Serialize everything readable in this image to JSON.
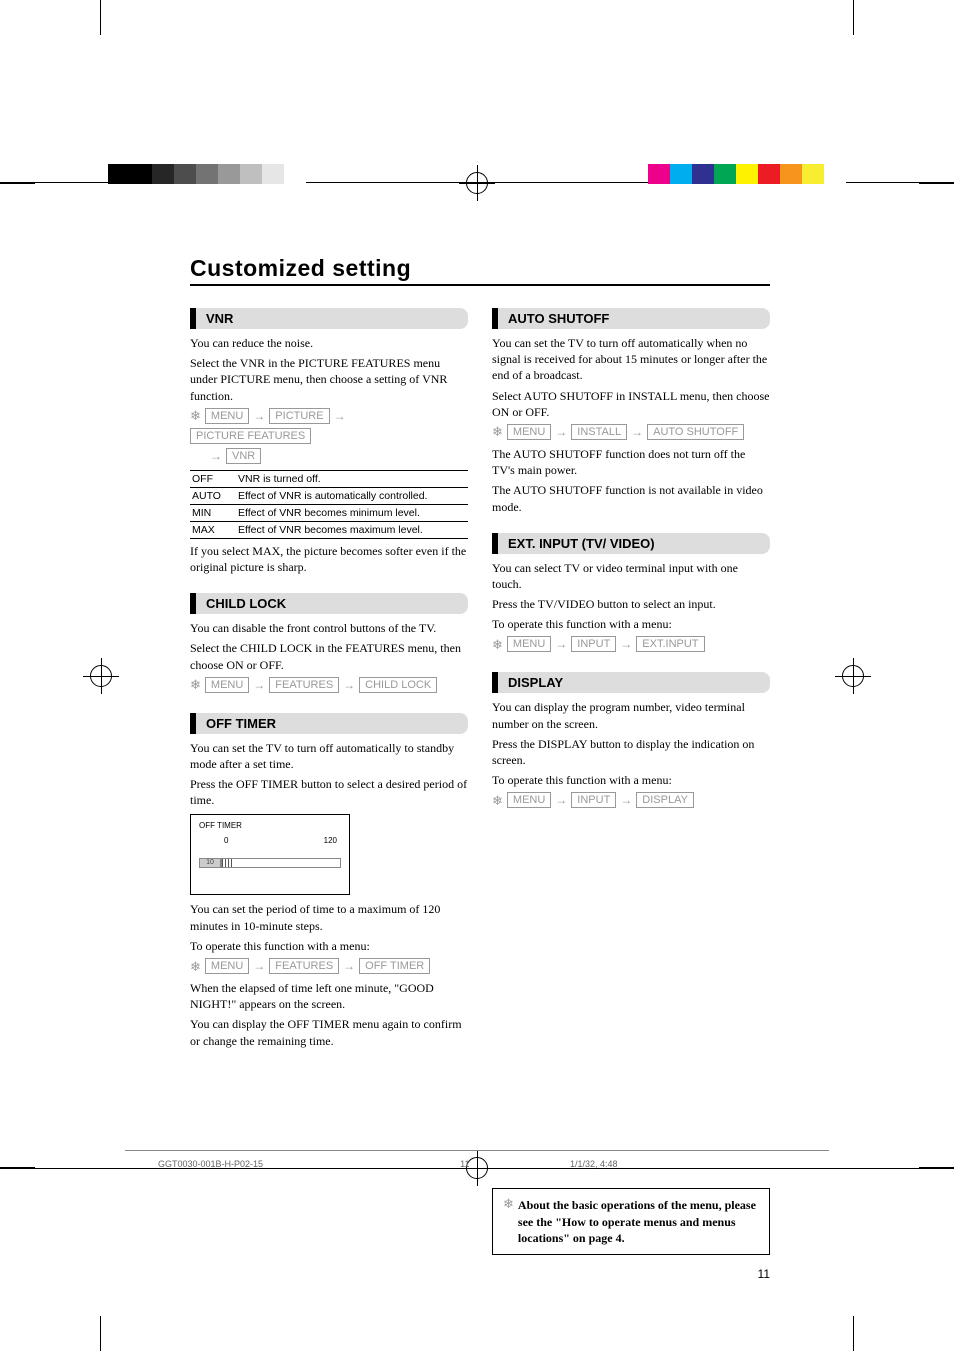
{
  "page_title": "Customized setting",
  "page_number": "11",
  "footer": {
    "doc_id": "GGT0030-001B-H-P02-15",
    "page": "11",
    "timestamp": "1/1/32, 4:48"
  },
  "note_box": "About the basic operations of the menu, please see the \"How to operate menus and menus locations\" on page 4.",
  "palette": {
    "left_bar": [
      "#000000",
      "#000000",
      "#262626",
      "#4d4d4d",
      "#737373",
      "#999999",
      "#bfbfbf",
      "#e6e6e6",
      "#ffffff"
    ],
    "right_bar": [
      "#ec008c",
      "#00aeef",
      "#2e3192",
      "#00a651",
      "#fff200",
      "#ed1c24",
      "#f7941d",
      "#f9ed32",
      "#ffffff"
    ]
  },
  "left": {
    "vnr": {
      "heading": "VNR",
      "intro1": "You can reduce the noise.",
      "intro2": "Select the VNR in the PICTURE FEATURES menu under PICTURE menu, then choose a setting of VNR function.",
      "path": [
        "MENU",
        "PICTURE",
        "PICTURE FEATURES",
        "VNR"
      ],
      "table": [
        {
          "k": "OFF",
          "v": "VNR is turned off."
        },
        {
          "k": "AUTO",
          "v": "Effect of VNR is automatically controlled."
        },
        {
          "k": "MIN",
          "v": "Effect of VNR becomes minimum level."
        },
        {
          "k": "MAX",
          "v": "Effect of VNR becomes maximum level."
        }
      ],
      "tail": "If you select MAX, the picture becomes softer even if the original picture is sharp."
    },
    "childlock": {
      "heading": "CHILD LOCK",
      "p1": "You can disable the front control buttons of the TV.",
      "p2": "Select the CHILD LOCK in the FEATURES menu, then choose ON or OFF.",
      "path": [
        "MENU",
        "FEATURES",
        "CHILD LOCK"
      ]
    },
    "offtimer": {
      "heading": "OFF TIMER",
      "p1": "You can set the TV to turn off automatically to standby mode after a set time.",
      "p2": "Press the OFF TIMER button to select a desired period of time.",
      "box_label": "OFF TIMER",
      "min": "0",
      "max": "120",
      "current": "10",
      "p3": "You can set the period of time to a maximum of 120 minutes in 10-minute steps.",
      "p4": "To operate this function with a menu:",
      "path": [
        "MENU",
        "FEATURES",
        "OFF TIMER"
      ],
      "p5": "When the elapsed of time left one minute, \"GOOD NIGHT!\" appears on the screen.",
      "p6": "You can display the OFF TIMER menu again to confirm or change the remaining time."
    }
  },
  "right": {
    "autoshutoff": {
      "heading": "AUTO SHUTOFF",
      "p1": "You can set the TV to turn off automatically when no signal is received for about 15 minutes or longer after the end of a broadcast.",
      "p2": "Select AUTO SHUTOFF in INSTALL menu, then choose ON or OFF.",
      "path": [
        "MENU",
        "INSTALL",
        "AUTO SHUTOFF"
      ],
      "p3": "The AUTO SHUTOFF function does not turn off the TV's main power.",
      "p4": "The AUTO SHUTOFF function is not available in video mode."
    },
    "extinput": {
      "heading": "EXT. INPUT (TV/ VIDEO)",
      "p1": "You can select TV or video terminal input with one touch.",
      "p2": "Press the TV/VIDEO button to select an input.",
      "p3": "To operate this function with a menu:",
      "path": [
        "MENU",
        "INPUT",
        "EXT.INPUT"
      ]
    },
    "display": {
      "heading": "DISPLAY",
      "p1": "You can display the program number, video terminal number on the screen.",
      "p2": "Press the DISPLAY button to display the indication on screen.",
      "p3": "To operate this function with a menu:",
      "path": [
        "MENU",
        "INPUT",
        "DISPLAY"
      ]
    }
  }
}
